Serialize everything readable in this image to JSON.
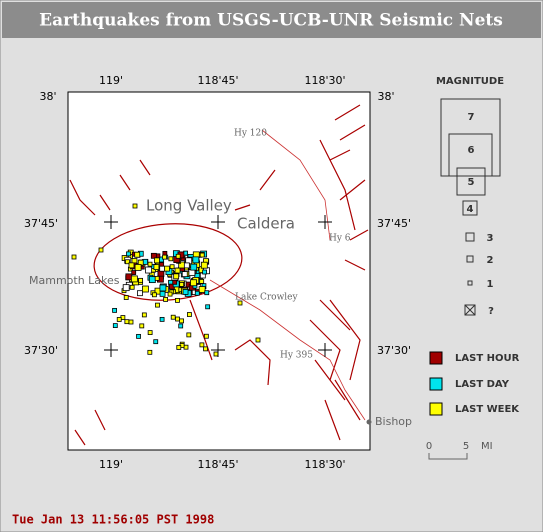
{
  "header": {
    "title": "Earthquakes from USGS-UCB-UNR Seismic Nets"
  },
  "map": {
    "lon_labels": [
      "119'",
      "118'45'",
      "118'30'"
    ],
    "lat_labels": [
      "38'",
      "37'45'",
      "37'30'"
    ],
    "places": {
      "long_valley": "Long Valley",
      "caldera": "Caldera",
      "mammoth": "Mammoth Lakes",
      "crowley": "Lake Crowley",
      "hy120": "Hy 120",
      "hy6": "Hy 6",
      "hy395": "Hy 395",
      "bishop": "Bishop"
    }
  },
  "legend": {
    "magnitude_title": "MAGNITUDE",
    "magnitudes": [
      "7",
      "6",
      "5",
      "4",
      "3",
      "2",
      "1",
      "?"
    ],
    "periods": [
      "LAST HOUR",
      "LAST DAY",
      "LAST WEEK"
    ],
    "scale": {
      "zero": "0",
      "five": "5",
      "unit": "MI"
    }
  },
  "footer": {
    "timestamp": "Tue Jan 13 11:56:05 PST 1998"
  }
}
